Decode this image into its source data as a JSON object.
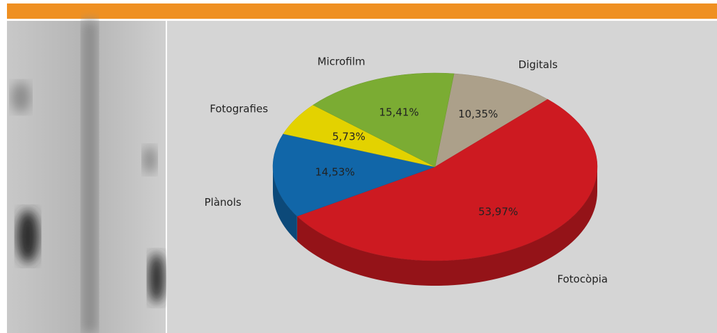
{
  "chart_data": {
    "type": "pie",
    "categories": [
      "Digitals",
      "Fotocòpia",
      "Plànols",
      "Fotografies",
      "Microfilm"
    ],
    "values": [
      10.35,
      53.97,
      14.53,
      5.73,
      15.41
    ],
    "value_labels": [
      "10,35%",
      "53,97%",
      "14,53%",
      "5,73%",
      "15,41%"
    ],
    "colors": [
      "#aca08a",
      "#cd1a21",
      "#1166a8",
      "#e3d200",
      "#7bac33"
    ]
  }
}
